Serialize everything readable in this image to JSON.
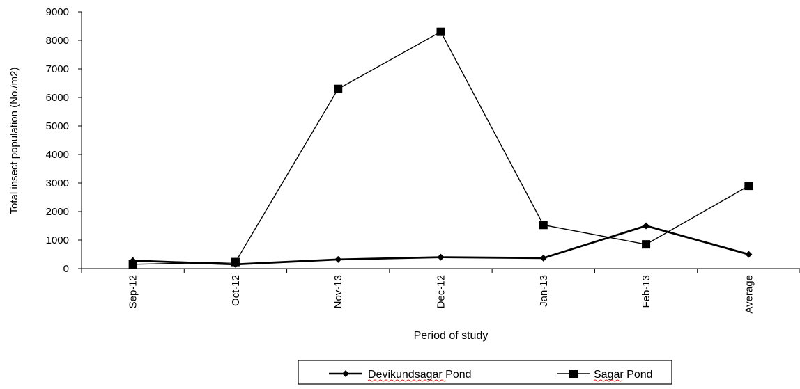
{
  "chart_data": {
    "type": "line",
    "title": "",
    "xlabel": "Period of study",
    "ylabel": "Total insect population (No./m2)",
    "categories": [
      "Sep-12",
      "Oct-12",
      "Nov-13",
      "Dec-12",
      "Jan-13",
      "Feb-13",
      "Average"
    ],
    "ylim": [
      0,
      9000
    ],
    "yticks": [
      0,
      1000,
      2000,
      3000,
      4000,
      5000,
      6000,
      7000,
      8000,
      9000
    ],
    "series": [
      {
        "name": "Devikundsagar Pond",
        "marker": "diamond",
        "values": [
          280,
          150,
          320,
          400,
          370,
          1500,
          500
        ]
      },
      {
        "name": "Sagar Pond",
        "marker": "square",
        "values": [
          150,
          230,
          6300,
          8300,
          1530,
          850,
          2900
        ]
      }
    ],
    "legend_position": "bottom-center",
    "grid": false,
    "line_color": "#000000"
  }
}
